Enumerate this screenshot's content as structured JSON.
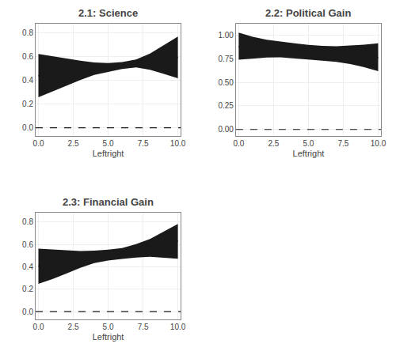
{
  "chart_data": [
    {
      "type": "line",
      "title": "2.1: Science",
      "xlabel": "Leftright",
      "x": [
        0,
        1,
        2,
        3,
        4,
        5,
        6,
        7,
        8,
        9,
        10
      ],
      "values": [
        0.44,
        0.455,
        0.47,
        0.485,
        0.5,
        0.515,
        0.53,
        0.545,
        0.56,
        0.578,
        0.595
      ],
      "ci_upper": [
        0.625,
        0.605,
        0.585,
        0.567,
        0.553,
        0.548,
        0.555,
        0.578,
        0.628,
        0.7,
        0.772
      ],
      "ci_lower": [
        0.258,
        0.308,
        0.358,
        0.403,
        0.448,
        0.472,
        0.498,
        0.51,
        0.49,
        0.455,
        0.418
      ],
      "color": "#1a1a1a",
      "hline": {
        "value": 0,
        "line_style": "dashed"
      },
      "xlim": [
        -0.2,
        10.2
      ],
      "xticks": [
        {
          "value": 0,
          "label": "0.0"
        },
        2.5,
        {
          "value": 5,
          "label": "5.0"
        },
        7.5,
        {
          "value": 10,
          "label": "10.0"
        }
      ],
      "ylim": [
        -0.07,
        0.88
      ],
      "yticks": [
        {
          "value": 0,
          "label": "0.0"
        },
        0.2,
        0.4,
        0.6,
        0.8
      ],
      "grid": true
    },
    {
      "type": "line",
      "title": "2.2: Political Gain",
      "xlabel": "Leftright",
      "x": [
        0,
        1,
        2,
        3,
        4,
        5,
        6,
        7,
        8,
        9,
        10
      ],
      "values": [
        0.877,
        0.868,
        0.858,
        0.847,
        0.835,
        0.823,
        0.812,
        0.802,
        0.793,
        0.778,
        0.762
      ],
      "ci_upper": [
        1.025,
        0.982,
        0.95,
        0.928,
        0.912,
        0.897,
        0.886,
        0.882,
        0.887,
        0.898,
        0.912
      ],
      "ci_lower": [
        0.74,
        0.752,
        0.762,
        0.764,
        0.75,
        0.738,
        0.728,
        0.716,
        0.692,
        0.66,
        0.618
      ],
      "color": "#1a1a1a",
      "hline": {
        "value": 0,
        "line_style": "dashed"
      },
      "xlim": [
        -0.2,
        10.2
      ],
      "xticks": [
        {
          "value": 0,
          "label": "0.0"
        },
        2.5,
        {
          "value": 5,
          "label": "5.0"
        },
        7.5,
        {
          "value": 10,
          "label": "10.0"
        }
      ],
      "ylim": [
        -0.07,
        1.12
      ],
      "yticks": [
        {
          "value": 0,
          "label": "0.00"
        },
        0.25,
        {
          "value": 0.5,
          "label": "0.50"
        },
        0.75,
        {
          "value": 1,
          "label": "1.00"
        }
      ],
      "grid": true
    },
    {
      "type": "line",
      "title": "2.3: Financial Gain",
      "xlabel": "Leftright",
      "x": [
        0,
        1,
        2,
        3,
        4,
        5,
        6,
        7,
        8,
        9,
        10
      ],
      "values": [
        0.405,
        0.425,
        0.447,
        0.468,
        0.49,
        0.508,
        0.524,
        0.548,
        0.572,
        0.6,
        0.63
      ],
      "ci_upper": [
        0.562,
        0.553,
        0.545,
        0.54,
        0.543,
        0.552,
        0.567,
        0.602,
        0.648,
        0.715,
        0.782
      ],
      "ci_lower": [
        0.248,
        0.29,
        0.34,
        0.39,
        0.432,
        0.455,
        0.47,
        0.483,
        0.49,
        0.483,
        0.472
      ],
      "color": "#1a1a1a",
      "hline": {
        "value": 0,
        "line_style": "dashed"
      },
      "xlim": [
        -0.2,
        10.2
      ],
      "xticks": [
        {
          "value": 0,
          "label": "0.0"
        },
        2.5,
        {
          "value": 5,
          "label": "5.0"
        },
        7.5,
        {
          "value": 10,
          "label": "10.0"
        }
      ],
      "ylim": [
        -0.07,
        0.88
      ],
      "yticks": [
        {
          "value": 0,
          "label": "0.0"
        },
        0.2,
        0.4,
        0.6,
        0.8
      ],
      "grid": true
    }
  ]
}
